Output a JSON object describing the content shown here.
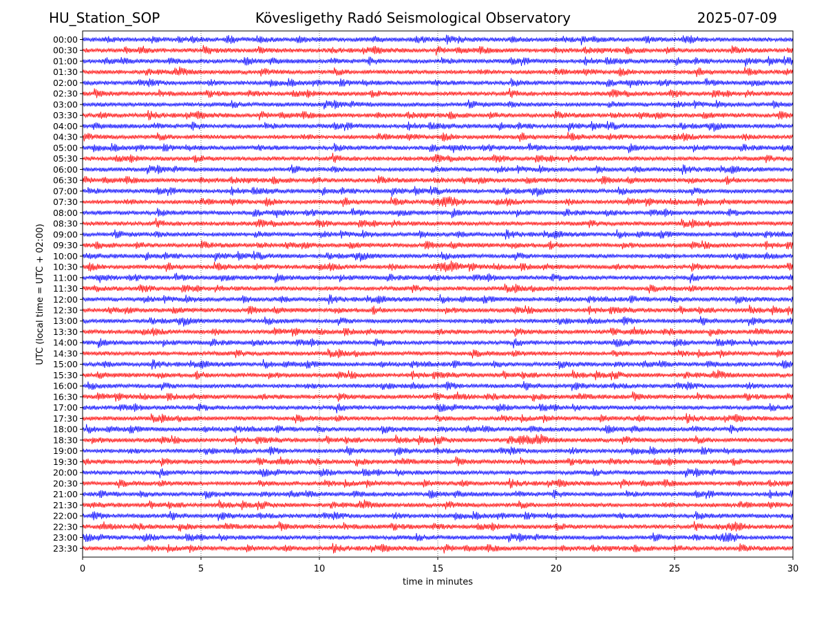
{
  "header": {
    "station": "HU_Station_SOP",
    "title": "Kövesligethy Radó Seismological Observatory",
    "date": "2025-07-09"
  },
  "chart_data": {
    "type": "line",
    "title": "Kövesligethy Radó Seismological Observatory",
    "xlabel": "time in minutes",
    "ylabel": "UTC (local time = UTC + 02:00)",
    "xlim": [
      0,
      30
    ],
    "x_ticks": [
      0,
      5,
      10,
      15,
      20,
      25,
      30
    ],
    "grid": "vertical dotted at x ticks",
    "series_colors": [
      "#0000ff",
      "#ff0000"
    ],
    "rows": [
      "00:00",
      "00:30",
      "01:00",
      "01:30",
      "02:00",
      "02:30",
      "03:00",
      "03:30",
      "04:00",
      "04:30",
      "05:00",
      "05:30",
      "06:00",
      "06:30",
      "07:00",
      "07:30",
      "08:00",
      "08:30",
      "09:00",
      "09:30",
      "10:00",
      "10:30",
      "11:00",
      "11:30",
      "12:00",
      "12:30",
      "13:00",
      "13:30",
      "14:00",
      "14:30",
      "15:00",
      "15:30",
      "16:00",
      "16:30",
      "17:00",
      "17:30",
      "18:00",
      "18:30",
      "19:00",
      "19:30",
      "20:00",
      "20:30",
      "21:00",
      "21:30",
      "22:00",
      "22:30",
      "23:00",
      "23:30"
    ],
    "note_events": [
      {
        "row": "07:30",
        "x": 15.5
      },
      {
        "row": "10:30",
        "x": 15.3
      },
      {
        "row": "18:30",
        "x": 18.7
      },
      {
        "row": "22:30",
        "x": 27.5
      },
      {
        "row": "23:00",
        "x": 27.3
      }
    ]
  }
}
